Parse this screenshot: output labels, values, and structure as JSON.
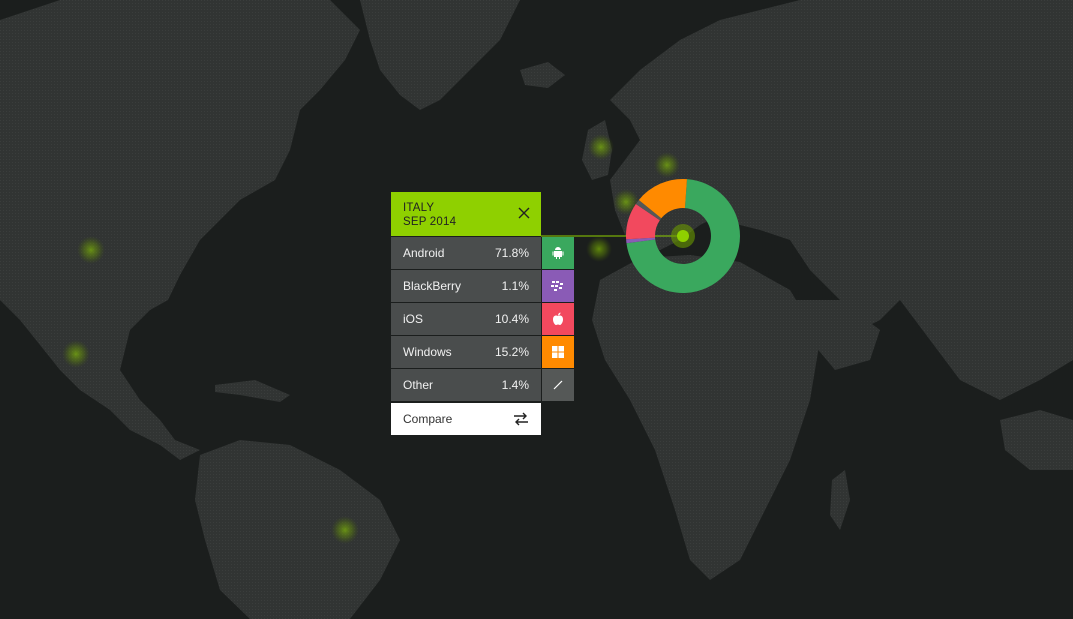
{
  "panel": {
    "country": "ITALY",
    "date": "SEP 2014",
    "close_icon": "close-icon",
    "rows": [
      {
        "name": "Android",
        "value": "71.8%",
        "pct": 71.8,
        "color": "#3aa85e",
        "icon": "android-icon"
      },
      {
        "name": "BlackBerry",
        "value": "1.1%",
        "pct": 1.1,
        "color": "#8a5bb6",
        "icon": "blackberry-icon"
      },
      {
        "name": "iOS",
        "value": "10.4%",
        "pct": 10.4,
        "color": "#f2495e",
        "icon": "apple-icon"
      },
      {
        "name": "Windows",
        "value": "15.2%",
        "pct": 15.2,
        "color": "#ff8a00",
        "icon": "windows-icon"
      },
      {
        "name": "Other",
        "value": "1.4%",
        "pct": 1.4,
        "color": "#555857",
        "icon": "other-icon"
      }
    ],
    "compare_label": "Compare",
    "compare_icon": "swap-icon"
  },
  "colors": {
    "accent": "#8fd000",
    "background": "#1b1e1d",
    "land": "#313433"
  }
}
